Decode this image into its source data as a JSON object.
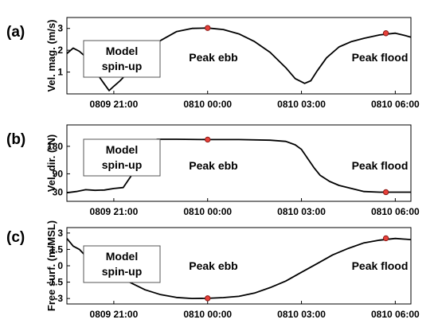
{
  "chart_data": [
    {
      "type": "line",
      "panel_label": "(a)",
      "ylabel": "Vel. mag. (m/s)",
      "xlim": [
        -4.5,
        6.5
      ],
      "ylim": [
        0,
        3.5
      ],
      "yticks": [
        1,
        2,
        3
      ],
      "ytick_labels": [
        "1",
        "2",
        "3"
      ],
      "xticks": [
        -3,
        0,
        3,
        6
      ],
      "xtick_labels": [
        "0809 21:00",
        "0810 00:00",
        "0810 03:00",
        "0810 06:00"
      ],
      "x": [
        -4.5,
        -4.3,
        -4.1,
        -3.9,
        -3.7,
        -3.5,
        -3.3,
        -3.15,
        -3.0,
        -2.8,
        -2.5,
        -2.0,
        -1.5,
        -1.0,
        -0.5,
        0.0,
        0.5,
        1.0,
        1.5,
        2.0,
        2.5,
        2.8,
        3.1,
        3.3,
        3.5,
        3.8,
        4.2,
        4.6,
        5.0,
        5.5,
        6.0,
        6.3,
        6.5
      ],
      "y": [
        1.85,
        2.1,
        1.95,
        1.7,
        1.3,
        0.85,
        0.45,
        0.15,
        0.35,
        0.6,
        1.05,
        1.85,
        2.45,
        2.85,
        3.0,
        3.02,
        2.95,
        2.75,
        2.4,
        1.9,
        1.2,
        0.7,
        0.48,
        0.6,
        1.05,
        1.65,
        2.15,
        2.4,
        2.55,
        2.7,
        2.78,
        2.68,
        2.6
      ],
      "markers": [
        {
          "x": 0.0,
          "y": 3.02
        },
        {
          "x": 5.7,
          "y": 2.78
        }
      ],
      "annotations": [
        "Peak ebb",
        "Peak flood"
      ],
      "box_label": [
        "Model",
        "spin-up"
      ]
    },
    {
      "type": "line",
      "panel_label": "(b)",
      "ylabel": "Vel. dir. (°N)",
      "xlim": [
        -4.5,
        6.5
      ],
      "ylim": [
        0,
        250
      ],
      "yticks": [
        30,
        90,
        180
      ],
      "ytick_labels": [
        "30",
        "90",
        "180"
      ],
      "xticks": [
        -3,
        0,
        3,
        6
      ],
      "xtick_labels": [
        "0809 21:00",
        "0810 00:00",
        "0810 03:00",
        "0810 06:00"
      ],
      "x": [
        -4.5,
        -4.2,
        -3.9,
        -3.6,
        -3.3,
        -3.0,
        -2.7,
        -2.4,
        -2.2,
        -2.0,
        -1.6,
        -1.0,
        0.0,
        1.0,
        2.0,
        2.5,
        2.8,
        3.0,
        3.2,
        3.4,
        3.6,
        3.9,
        4.2,
        4.6,
        5.0,
        5.5,
        6.0,
        6.5
      ],
      "y": [
        28,
        32,
        38,
        36,
        37,
        42,
        45,
        90,
        150,
        195,
        203,
        203,
        202,
        202,
        200,
        196,
        185,
        170,
        140,
        110,
        85,
        65,
        52,
        42,
        32,
        30,
        30,
        30
      ],
      "markers": [
        {
          "x": 0.0,
          "y": 202
        },
        {
          "x": 5.7,
          "y": 30
        }
      ],
      "annotations": [
        "Peak ebb",
        "Peak flood"
      ],
      "box_label": [
        "Model",
        "spin-up"
      ]
    },
    {
      "type": "line",
      "panel_label": "(c)",
      "ylabel": "Free surf. (m/MSL)",
      "xlim": [
        -4.5,
        6.5
      ],
      "ylim": [
        -3.5,
        3.5
      ],
      "yticks": [
        -3,
        -1.5,
        0,
        1.5,
        3
      ],
      "ytick_labels": [
        "-3",
        "-1.5",
        "0",
        "1.5",
        "3"
      ],
      "xticks": [
        -3,
        0,
        3,
        6
      ],
      "xtick_labels": [
        "0809 21:00",
        "0810 00:00",
        "0810 03:00",
        "0810 06:00"
      ],
      "x": [
        -4.5,
        -4.3,
        -4.1,
        -3.9,
        -3.6,
        -3.3,
        -3.0,
        -2.5,
        -2.0,
        -1.5,
        -1.0,
        -0.5,
        0.0,
        0.5,
        1.0,
        1.5,
        2.0,
        2.5,
        3.0,
        3.5,
        4.0,
        4.5,
        5.0,
        5.5,
        6.0,
        6.5
      ],
      "y": [
        2.5,
        1.8,
        1.5,
        0.9,
        0.3,
        -0.3,
        -0.6,
        -1.5,
        -2.2,
        -2.65,
        -2.9,
        -3.0,
        -2.98,
        -2.92,
        -2.8,
        -2.5,
        -2.0,
        -1.4,
        -0.6,
        0.2,
        1.0,
        1.6,
        2.1,
        2.35,
        2.5,
        2.4
      ],
      "markers": [
        {
          "x": 0.0,
          "y": -2.98
        },
        {
          "x": 5.7,
          "y": 2.52
        }
      ],
      "annotations": [
        "Peak ebb",
        "Peak flood"
      ],
      "box_label": [
        "Model",
        "spin-up"
      ]
    }
  ]
}
